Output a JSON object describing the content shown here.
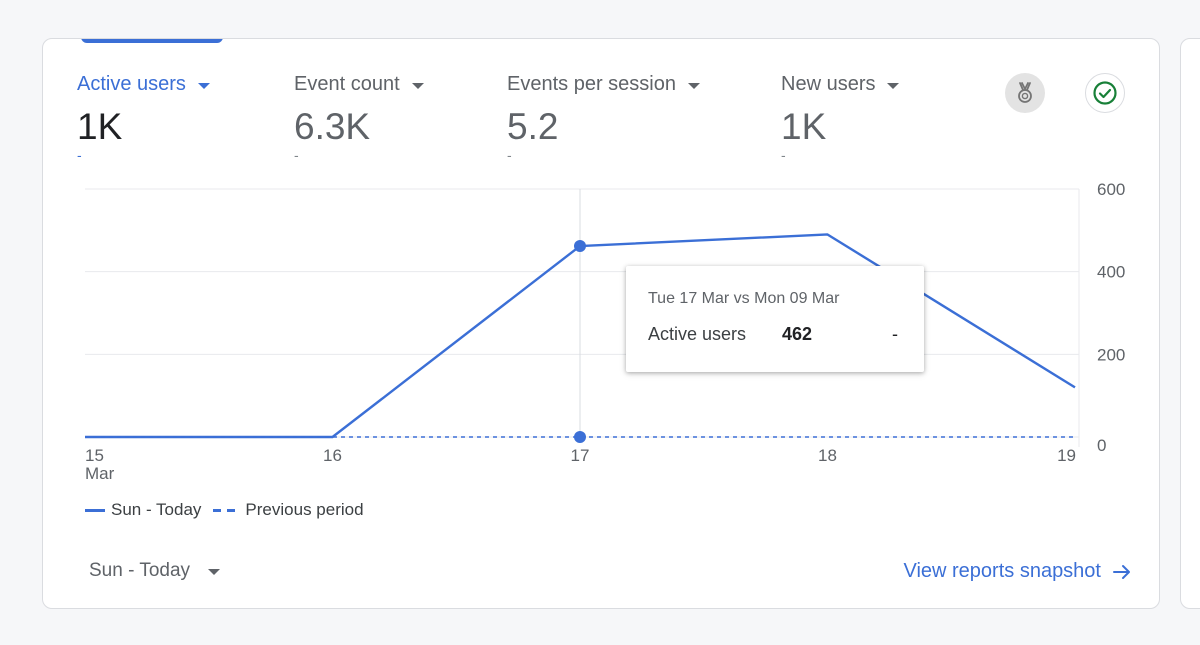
{
  "metrics": [
    {
      "label": "Active users",
      "value": "1K",
      "delta": "-",
      "active": true
    },
    {
      "label": "Event count",
      "value": "6.3K",
      "delta": "-",
      "active": false
    },
    {
      "label": "Events per session",
      "value": "5.2",
      "delta": "-",
      "active": false
    },
    {
      "label": "New users",
      "value": "1K",
      "delta": "-",
      "active": false
    }
  ],
  "icons": {
    "medal": "medal-icon",
    "check": "check-circle-icon"
  },
  "colors": {
    "accent": "#3b6fd6",
    "check_green": "#188038"
  },
  "chart_data": {
    "type": "line",
    "x": [
      "15\nMar",
      "16",
      "17",
      "18",
      "19"
    ],
    "x_tick_labels": [
      "15",
      "16",
      "17",
      "18",
      "19"
    ],
    "x_tick_sublabel": "Mar",
    "ylim": [
      0,
      600
    ],
    "y_ticks": [
      "600",
      "400",
      "200",
      "0"
    ],
    "y_tick_values": [
      600,
      400,
      200,
      0
    ],
    "series": [
      {
        "name": "Sun - Today",
        "style": "solid",
        "values": [
          0,
          0,
          462,
          490,
          120
        ]
      },
      {
        "name": "Previous period",
        "style": "dashed",
        "values": [
          0,
          0,
          0,
          0,
          0
        ]
      }
    ],
    "highlight_index": 2,
    "grid": true,
    "legend_position": "bottom-left"
  },
  "tooltip": {
    "header": "Tue 17 Mar vs Mon 09 Mar",
    "label": "Active users",
    "value": "462",
    "delta": "-"
  },
  "legend": {
    "current": "Sun - Today",
    "previous": "Previous period"
  },
  "footer": {
    "date_range": "Sun - Today",
    "view_link": "View reports snapshot"
  }
}
